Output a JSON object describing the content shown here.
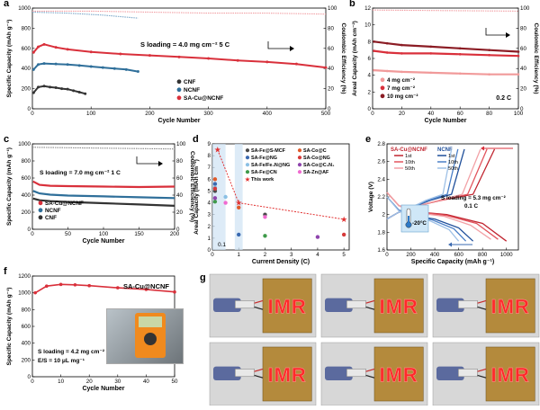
{
  "panels": {
    "a": {
      "letter": "a",
      "ylabel": "Specific Capacity (mAh g⁻¹)",
      "y2label": "Coulombic Efficiency (%)",
      "xlabel": "Cycle Number",
      "annotation": "S loading = 4.0 mg cm⁻²    5 C",
      "legend": [
        "CNF",
        "NCNF",
        "SA-Cu@NCNF"
      ]
    },
    "b": {
      "letter": "b",
      "ylabel": "Areal Capacity (mAh cm⁻²)",
      "y2label": "Coulombic Efficiency (%)",
      "xlabel": "Cycle Number",
      "rate": "0.2 C",
      "legend": [
        "4 mg cm⁻²",
        "7 mg cm⁻²",
        "10 mg cm⁻²"
      ]
    },
    "c": {
      "letter": "c",
      "ylabel": "Specific Capacity (mAh g⁻¹)",
      "y2label": "Coulombic Efficiency (%)",
      "xlabel": "Cycle Number",
      "annotation": "S loading = 7.0 mg cm⁻²    1 C",
      "legend": [
        "SA-Cu@NCNF",
        "NCNF",
        "CNF"
      ]
    },
    "d": {
      "letter": "d",
      "ylabel": "Areal Capacity (mAh cm⁻²)",
      "xlabel": "Current Density (C)",
      "inset_label": "0.1",
      "legend": [
        "SA-Fe@S-MCF",
        "SA-Fe@NG",
        "SA-Fe/Fe₄N@NG",
        "SA-Fe@CN",
        "This work",
        "SA-Co@C",
        "SA-Co@NG",
        "SA-Co@C₃N₄",
        "SA-Zn@AF"
      ]
    },
    "e": {
      "letter": "e",
      "ylabel": "Voltage (V)",
      "xlabel": "Specific Capacity (mAh g⁻¹)",
      "legend_title_1": "SA-Cu@NCNF",
      "legend_title_2": "NCNF",
      "legend_items": [
        "1st",
        "10th",
        "50th"
      ],
      "annotation_1": "S loading = 5.3 mg cm⁻²",
      "annotation_2": "0.1 C",
      "temperature": "-20°C"
    },
    "f": {
      "letter": "f",
      "ylabel": "Specific Capacity (mAh g⁻¹)",
      "xlabel": "Cycle Number",
      "title": "SA-Cu@NCNF",
      "annotation_1": "S loading = 4.2 mg cm⁻²",
      "annotation_2": "E/S = 10 μL mg⁻¹",
      "rate": "0.1 C"
    },
    "g": {
      "letter": "g",
      "display_text": "IMR"
    }
  },
  "chart_data": [
    {
      "panel": "a",
      "type": "line",
      "xlim": [
        0,
        500
      ],
      "ylim": [
        0,
        1000
      ],
      "y2lim": [
        0,
        100
      ],
      "xticks": [
        0,
        100,
        200,
        300,
        400,
        500
      ],
      "yticks": [
        0,
        200,
        400,
        600,
        800,
        1000
      ],
      "y2ticks": [
        0,
        20,
        40,
        60,
        80,
        100
      ],
      "series": [
        {
          "name": "CNF",
          "color": "#333333",
          "x": [
            2,
            10,
            20,
            30,
            40,
            50,
            60,
            70,
            80,
            90
          ],
          "y": [
            160,
            215,
            225,
            215,
            210,
            200,
            195,
            180,
            165,
            150
          ]
        },
        {
          "name": "NCNF",
          "color": "#2f6f9a",
          "x": [
            2,
            10,
            20,
            40,
            60,
            80,
            100,
            120,
            140,
            160,
            180
          ],
          "y": [
            390,
            440,
            450,
            445,
            440,
            430,
            420,
            410,
            400,
            390,
            370
          ]
        },
        {
          "name": "SA-Cu@NCNF",
          "color": "#d9303b",
          "x": [
            2,
            10,
            20,
            40,
            60,
            100,
            150,
            200,
            250,
            300,
            350,
            400,
            450,
            500
          ],
          "y": [
            560,
            615,
            640,
            610,
            590,
            565,
            545,
            530,
            515,
            500,
            480,
            465,
            445,
            410
          ]
        }
      ],
      "ce_series": [
        {
          "name": "SA-Cu@NCNF",
          "x": [
            0,
            100,
            200,
            300,
            400,
            500
          ],
          "y": [
            97,
            97,
            96,
            95,
            95,
            94
          ]
        },
        {
          "name": "NCNF",
          "x": [
            0,
            60,
            120,
            180
          ],
          "y": [
            96,
            95,
            93,
            90
          ]
        }
      ]
    },
    {
      "panel": "b",
      "type": "line",
      "xlim": [
        0,
        100
      ],
      "ylim": [
        0,
        12
      ],
      "y2lim": [
        0,
        100
      ],
      "xticks": [
        0,
        20,
        40,
        60,
        80,
        100
      ],
      "yticks": [
        0,
        2,
        4,
        6,
        8,
        10,
        12
      ],
      "y2ticks": [
        0,
        20,
        40,
        60,
        80,
        100
      ],
      "series": [
        {
          "name": "4 mg cm⁻²",
          "color": "#f19a9a",
          "x": [
            1,
            10,
            20,
            40,
            60,
            80,
            100
          ],
          "y": [
            4.6,
            4.5,
            4.4,
            4.3,
            4.2,
            4.1,
            4.1
          ]
        },
        {
          "name": "7 mg cm⁻²",
          "color": "#d9303b",
          "x": [
            1,
            10,
            20,
            40,
            60,
            80,
            100
          ],
          "y": [
            6.9,
            6.7,
            6.6,
            6.6,
            6.5,
            6.4,
            6.3
          ]
        },
        {
          "name": "10 mg cm⁻²",
          "color": "#8b1c24",
          "x": [
            1,
            10,
            20,
            40,
            60,
            80,
            100
          ],
          "y": [
            8.0,
            7.8,
            7.6,
            7.4,
            7.2,
            7.0,
            6.8
          ]
        }
      ],
      "ce_series": [
        {
          "name": "CE",
          "x": [
            0,
            100
          ],
          "y": [
            98,
            97
          ]
        }
      ]
    },
    {
      "panel": "c",
      "type": "line",
      "xlim": [
        0,
        200
      ],
      "ylim": [
        0,
        1000
      ],
      "y2lim": [
        0,
        100
      ],
      "xticks": [
        0,
        50,
        100,
        150,
        200
      ],
      "yticks": [
        0,
        200,
        400,
        600,
        800,
        1000
      ],
      "y2ticks": [
        0,
        20,
        40,
        60,
        80,
        100
      ],
      "series": [
        {
          "name": "SA-Cu@NCNF",
          "color": "#d9303b",
          "x": [
            1,
            10,
            25,
            50,
            100,
            150,
            200
          ],
          "y": [
            560,
            520,
            510,
            505,
            500,
            495,
            500
          ]
        },
        {
          "name": "NCNF",
          "color": "#2f6f9a",
          "x": [
            1,
            10,
            25,
            50,
            100,
            150,
            200
          ],
          "y": [
            450,
            420,
            405,
            395,
            385,
            375,
            365
          ]
        },
        {
          "name": "CNF",
          "color": "#333333",
          "x": [
            1,
            10,
            25,
            50,
            100,
            150,
            200
          ],
          "y": [
            360,
            340,
            330,
            320,
            305,
            290,
            275
          ]
        }
      ],
      "ce_series": [
        {
          "name": "CE",
          "x": [
            0,
            100,
            200
          ],
          "y": [
            96,
            95,
            94
          ]
        }
      ]
    },
    {
      "panel": "d",
      "type": "scatter",
      "xlim": [
        0,
        5.2
      ],
      "ylim": [
        0,
        9
      ],
      "xticks": [
        0,
        1,
        2,
        3,
        4,
        5
      ],
      "yticks": [
        0,
        1,
        2,
        3,
        4,
        5,
        6,
        7,
        8,
        9
      ],
      "series": [
        {
          "name": "SA-Fe@S-MCF",
          "color": "#4b4b4b",
          "x": [
            0.1,
            2
          ],
          "y": [
            5.0,
            3.0
          ]
        },
        {
          "name": "SA-Fe@NG",
          "color": "#3a69b0",
          "x": [
            0.1,
            1
          ],
          "y": [
            5.6,
            1.3
          ]
        },
        {
          "name": "SA-Fe/Fe₄N@NG",
          "color": "#8bc0e4",
          "x": [
            0.1,
            0.5
          ],
          "y": [
            5.3,
            4.5
          ]
        },
        {
          "name": "SA-Fe@CN",
          "color": "#3f9a4a",
          "x": [
            0.1,
            2
          ],
          "y": [
            4.1,
            1.2
          ]
        },
        {
          "name": "This work",
          "color": "#e23131",
          "x": [
            0.2,
            1,
            5
          ],
          "y": [
            8.5,
            4.0,
            2.6
          ]
        },
        {
          "name": "SA-Co@C",
          "color": "#e05a2a",
          "x": [
            0.1,
            1
          ],
          "y": [
            6.0,
            3.6
          ]
        },
        {
          "name": "SA-Co@NG",
          "color": "#d63a3a",
          "x": [
            0.1,
            5
          ],
          "y": [
            5.2,
            1.3
          ]
        },
        {
          "name": "SA-Co@C₃N₄",
          "color": "#8e44ad",
          "x": [
            0.1,
            4
          ],
          "y": [
            4.4,
            1.1
          ]
        },
        {
          "name": "SA-Zn@AF",
          "color": "#f06ad0",
          "x": [
            0.5,
            2
          ],
          "y": [
            4.0,
            2.8
          ]
        }
      ]
    },
    {
      "panel": "e",
      "type": "line",
      "xlim": [
        0,
        1100
      ],
      "ylim": [
        1.6,
        2.8
      ],
      "xticks": [
        0,
        200,
        400,
        600,
        800,
        1000
      ],
      "yticks": [
        1.6,
        1.8,
        2.0,
        2.2,
        2.4,
        2.6,
        2.8
      ],
      "series": [
        {
          "name": "SA-Cu@NCNF 1st",
          "color": "#c0242f",
          "x": [
            0,
            100,
            250,
            500,
            800,
            1000
          ],
          "y": [
            2.25,
            2.1,
            2.03,
            2.0,
            1.9,
            1.7
          ]
        },
        {
          "name": "SA-Cu@NCNF 10th",
          "color": "#e2545d",
          "x": [
            0,
            100,
            250,
            500,
            750,
            930
          ],
          "y": [
            2.25,
            2.1,
            2.03,
            1.99,
            1.9,
            1.72
          ]
        },
        {
          "name": "SA-Cu@NCNF 50th",
          "color": "#f2a1a6",
          "x": [
            0,
            100,
            250,
            480,
            700,
            870
          ],
          "y": [
            2.25,
            2.1,
            2.02,
            1.98,
            1.88,
            1.72
          ]
        },
        {
          "name": "NCNF 1st",
          "color": "#1f4f9a",
          "x": [
            0,
            100,
            250,
            400,
            600,
            720
          ],
          "y": [
            2.2,
            2.05,
            1.98,
            1.95,
            1.85,
            1.7
          ]
        },
        {
          "name": "NCNF 10th",
          "color": "#4a7fc7",
          "x": [
            0,
            100,
            250,
            380,
            560,
            660
          ],
          "y": [
            2.2,
            2.05,
            1.98,
            1.94,
            1.84,
            1.7
          ]
        },
        {
          "name": "NCNF 50th",
          "color": "#9ec0e6",
          "x": [
            0,
            100,
            240,
            360,
            520,
            600
          ],
          "y": [
            2.2,
            2.04,
            1.97,
            1.93,
            1.83,
            1.7
          ]
        }
      ]
    },
    {
      "panel": "f",
      "type": "line",
      "xlim": [
        0,
        50
      ],
      "ylim": [
        0,
        1200
      ],
      "xticks": [
        0,
        10,
        20,
        30,
        40,
        50
      ],
      "yticks": [
        0,
        200,
        400,
        600,
        800,
        1000,
        1200
      ],
      "series": [
        {
          "name": "SA-Cu@NCNF",
          "color": "#d9303b",
          "x": [
            1,
            5,
            10,
            15,
            20,
            30,
            40,
            50
          ],
          "y": [
            1000,
            1080,
            1100,
            1095,
            1085,
            1060,
            1040,
            1010
          ]
        }
      ]
    }
  ]
}
